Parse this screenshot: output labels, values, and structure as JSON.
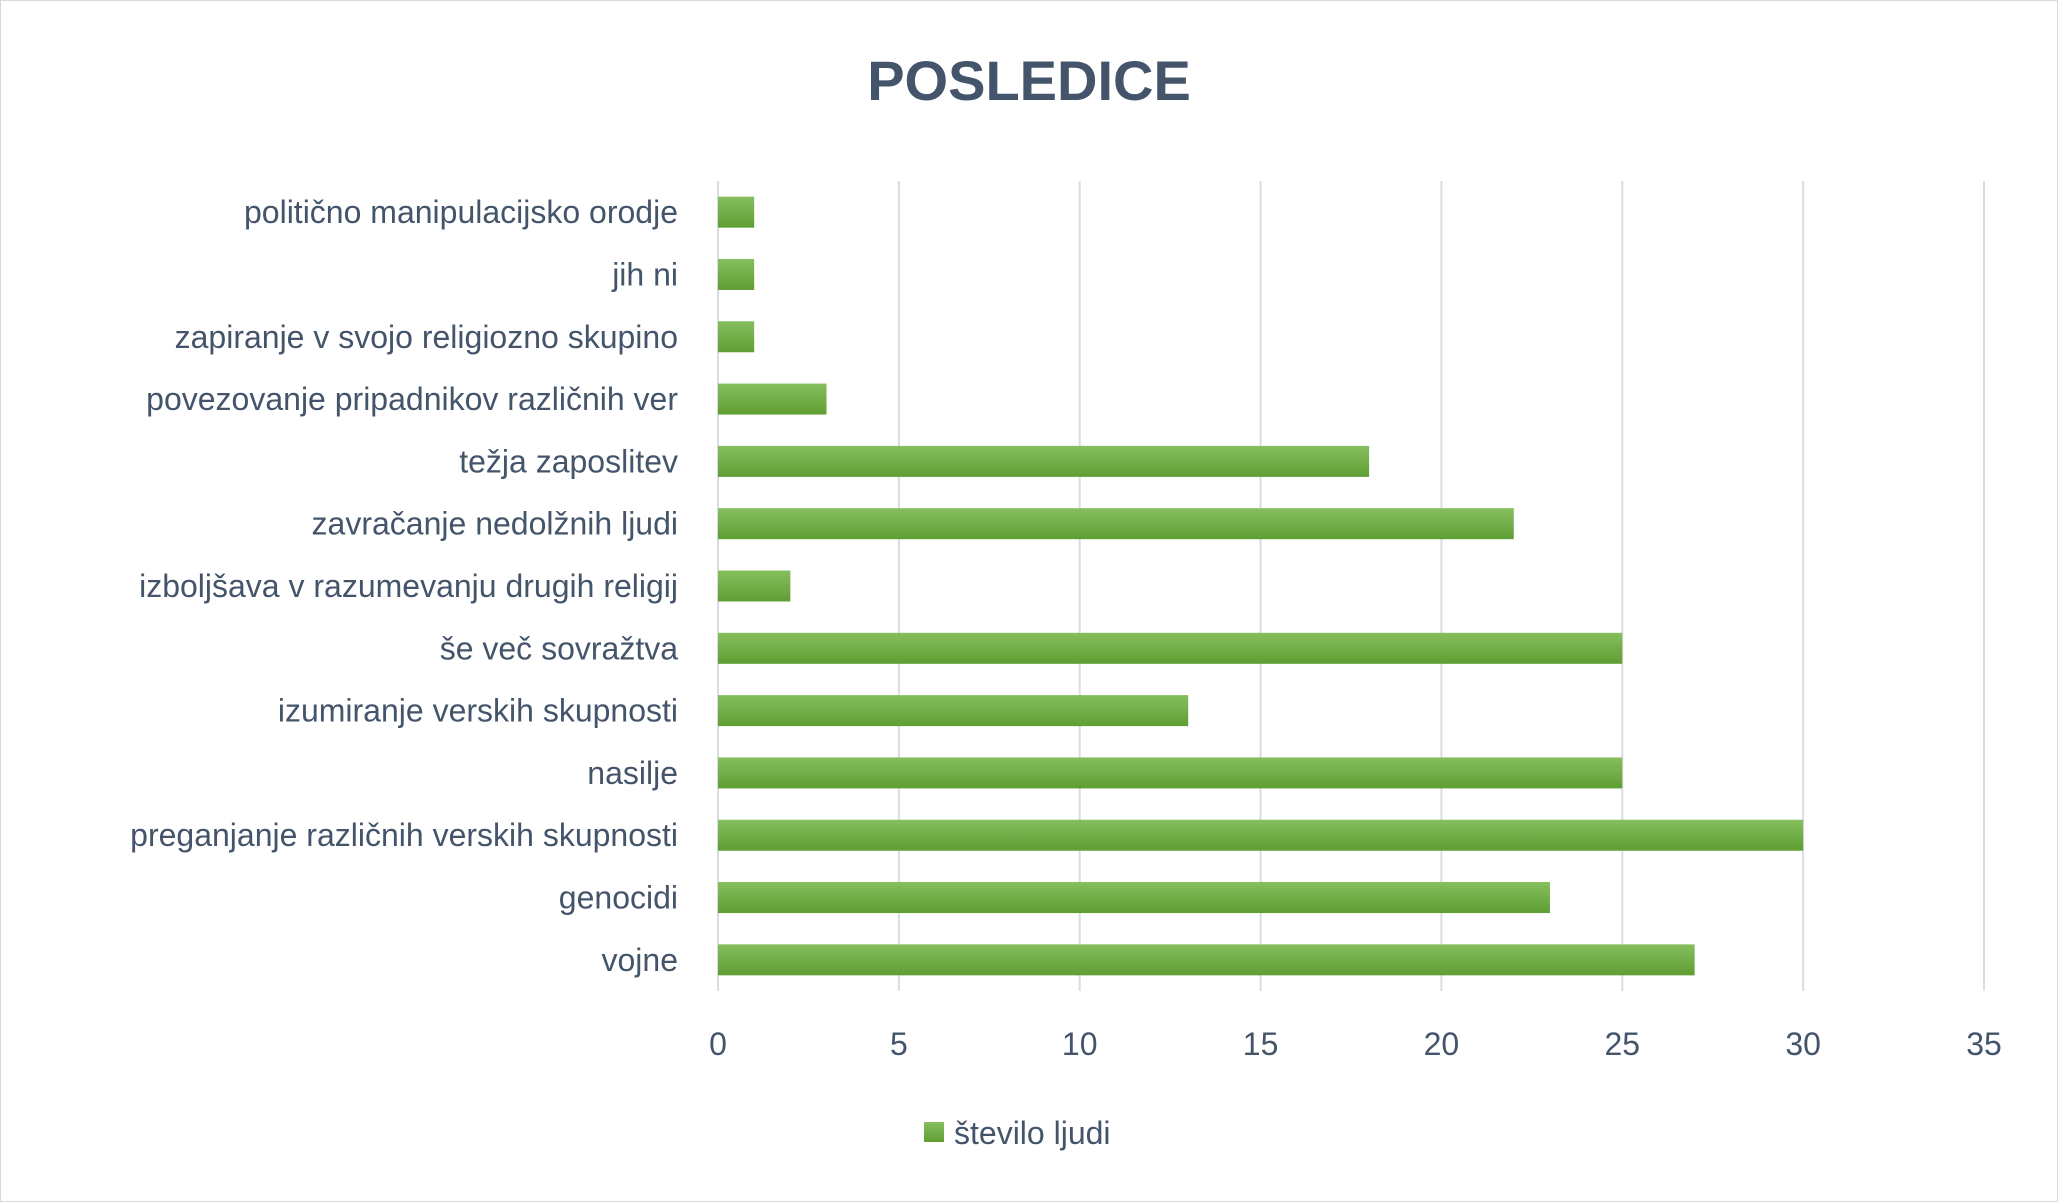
{
  "chart_data": {
    "type": "bar",
    "orientation": "horizontal",
    "title": "POSLEDICE",
    "categories": [
      "politično manipulacijsko orodje",
      "jih ni",
      "zapiranje v svojo religiozno skupino",
      "povezovanje pripadnikov različnih ver",
      "težja zaposlitev",
      "zavračanje nedolžnih ljudi",
      "izboljšava v razumevanju drugih religij",
      "še več sovražtva",
      "izumiranje verskih skupnosti",
      "nasilje",
      "preganjanje različnih verskih skupnosti",
      "genocidi",
      "vojne"
    ],
    "series": [
      {
        "name": "število ljudi",
        "values": [
          1,
          1,
          1,
          3,
          18,
          22,
          2,
          25,
          13,
          25,
          30,
          23,
          27
        ]
      }
    ],
    "xlim": [
      0,
      35
    ],
    "xticks": [
      "0",
      "5",
      "10",
      "15",
      "20",
      "25",
      "30",
      "35"
    ],
    "grid": true,
    "legend": "bottom",
    "colors": {
      "bar": "#70ad47",
      "text": "#44546a",
      "grid": "#d9dce3"
    }
  }
}
